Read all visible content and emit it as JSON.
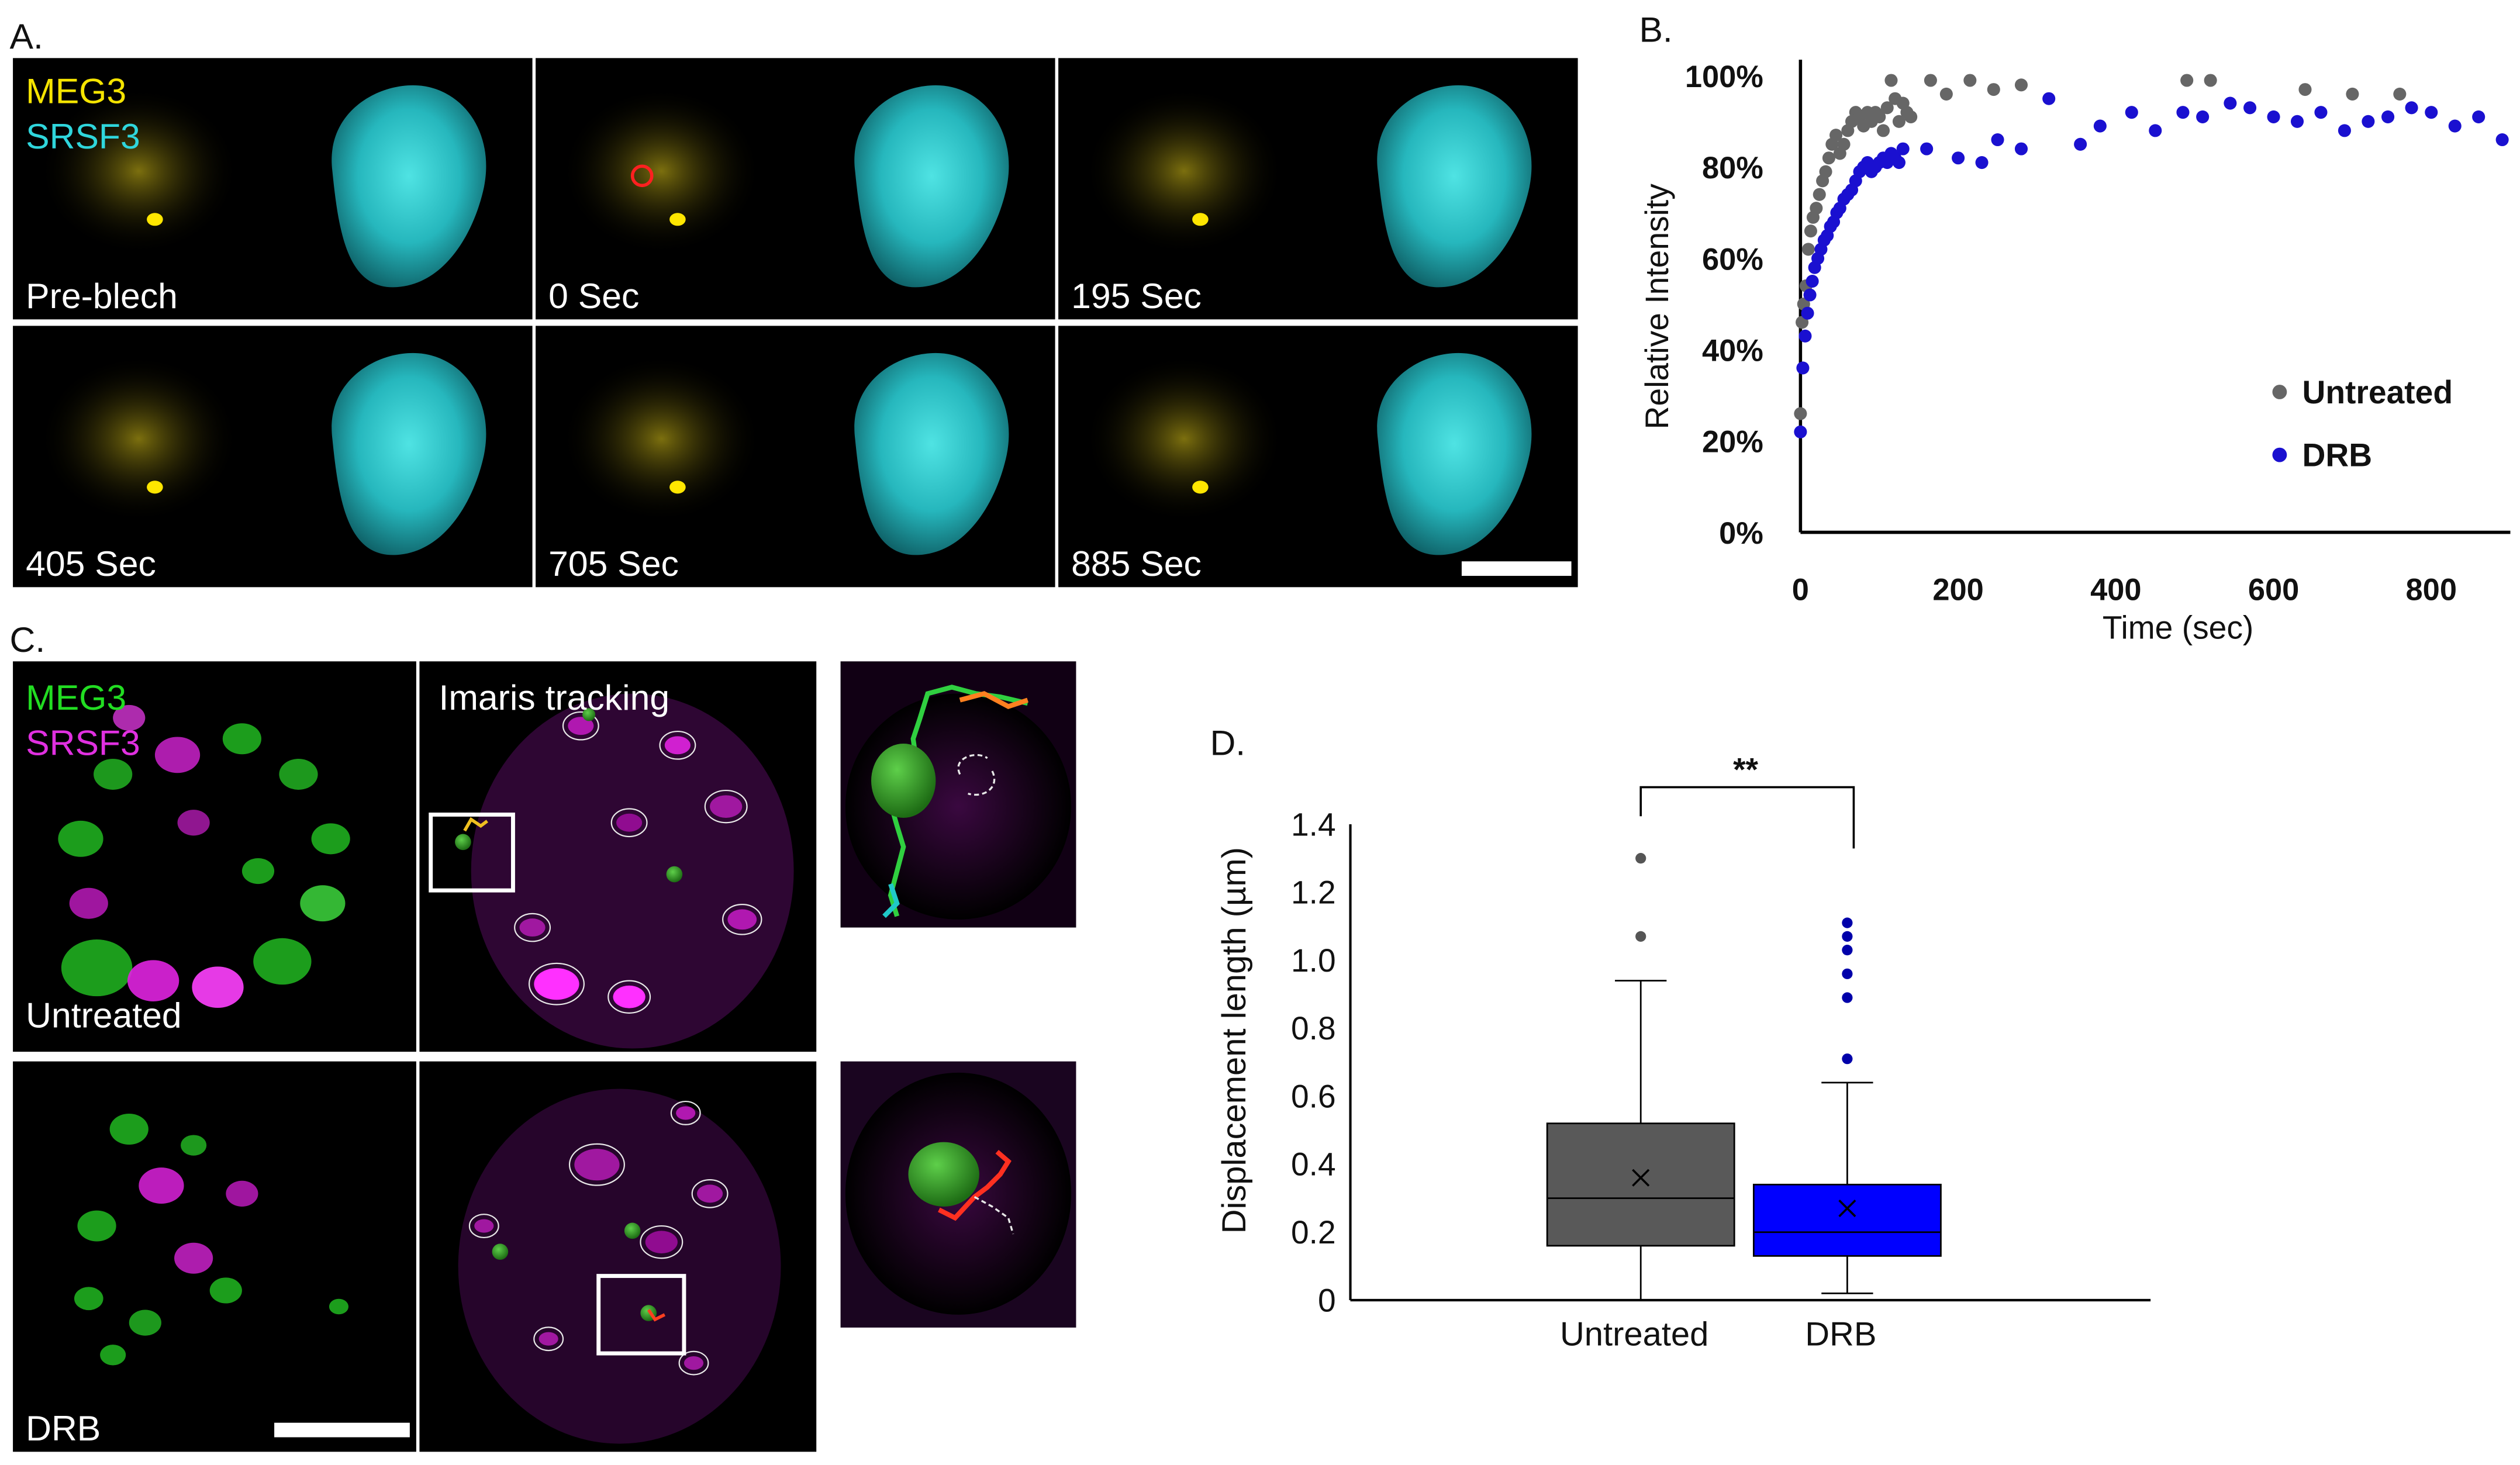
{
  "panel_a": {
    "label": "A.",
    "channels": [
      "MEG3",
      "SRSF3"
    ],
    "timepoints": [
      "Pre-blech",
      "0 Sec",
      "195 Sec",
      "405 Sec",
      "705 Sec",
      "885 Sec"
    ],
    "colors": {
      "meg3": "#f5e400",
      "srsf3": "#2fd6dc",
      "bleach_roi": "#ff2020"
    }
  },
  "panel_b": {
    "label": "B.",
    "colors": {
      "untreated": "#666666",
      "drb": "#1a10d0"
    }
  },
  "panel_c": {
    "label": "C.",
    "channels": [
      "MEG3",
      "SRSF3"
    ],
    "tracking_label": "Imaris tracking",
    "row_labels": [
      "Untreated",
      "DRB"
    ],
    "colors": {
      "meg3": "#22dd22",
      "srsf3": "#e030e0"
    }
  },
  "panel_d": {
    "label": "D.",
    "colors": {
      "untreated": "#595959",
      "drb": "#0000ff"
    }
  },
  "chart_data": [
    {
      "type": "scatter",
      "xlabel": "Time (sec)",
      "ylabel": "Relative Intensity",
      "xlim": [
        0,
        900
      ],
      "ylim": [
        0,
        100
      ],
      "x_ticks": [
        "0",
        "200",
        "400",
        "600",
        "800"
      ],
      "y_ticks": [
        "0%",
        "20%",
        "40%",
        "60%",
        "80%",
        "100%"
      ],
      "grid": false,
      "legend": "right",
      "series": [
        {
          "name": "Untreated",
          "points": [
            [
              0,
              26
            ],
            [
              2,
              46
            ],
            [
              4,
              50
            ],
            [
              7,
              54
            ],
            [
              10,
              62
            ],
            [
              13,
              66
            ],
            [
              16,
              69
            ],
            [
              20,
              71
            ],
            [
              24,
              74
            ],
            [
              28,
              77
            ],
            [
              32,
              79
            ],
            [
              36,
              82
            ],
            [
              40,
              85
            ],
            [
              45,
              87
            ],
            [
              50,
              83
            ],
            [
              55,
              85
            ],
            [
              60,
              88
            ],
            [
              65,
              90
            ],
            [
              70,
              92
            ],
            [
              75,
              91
            ],
            [
              80,
              89
            ],
            [
              85,
              92
            ],
            [
              90,
              90
            ],
            [
              95,
              92
            ],
            [
              100,
              91
            ],
            [
              105,
              88
            ],
            [
              110,
              93
            ],
            [
              115,
              99
            ],
            [
              120,
              95
            ],
            [
              125,
              90
            ],
            [
              130,
              94
            ],
            [
              135,
              92
            ],
            [
              140,
              91
            ],
            [
              165,
              99
            ],
            [
              185,
              96
            ],
            [
              215,
              99
            ],
            [
              245,
              97
            ],
            [
              280,
              98
            ],
            [
              490,
              99
            ],
            [
              520,
              99
            ],
            [
              640,
              97
            ],
            [
              700,
              96
            ],
            [
              760,
              96
            ]
          ]
        },
        {
          "name": "DRB",
          "points": [
            [
              0,
              22
            ],
            [
              3,
              36
            ],
            [
              6,
              43
            ],
            [
              9,
              48
            ],
            [
              12,
              52
            ],
            [
              15,
              55
            ],
            [
              18,
              58
            ],
            [
              22,
              60
            ],
            [
              26,
              62
            ],
            [
              30,
              64
            ],
            [
              34,
              65
            ],
            [
              38,
              67
            ],
            [
              42,
              68
            ],
            [
              46,
              70
            ],
            [
              50,
              71
            ],
            [
              55,
              73
            ],
            [
              60,
              74
            ],
            [
              65,
              75
            ],
            [
              70,
              77
            ],
            [
              75,
              79
            ],
            [
              80,
              80
            ],
            [
              85,
              81
            ],
            [
              90,
              79
            ],
            [
              95,
              80
            ],
            [
              100,
              81
            ],
            [
              105,
              82
            ],
            [
              110,
              81
            ],
            [
              115,
              83
            ],
            [
              120,
              82
            ],
            [
              125,
              81
            ],
            [
              130,
              84
            ],
            [
              160,
              84
            ],
            [
              200,
              82
            ],
            [
              230,
              81
            ],
            [
              250,
              86
            ],
            [
              280,
              84
            ],
            [
              315,
              95
            ],
            [
              355,
              85
            ],
            [
              380,
              89
            ],
            [
              420,
              92
            ],
            [
              450,
              88
            ],
            [
              485,
              92
            ],
            [
              510,
              91
            ],
            [
              545,
              94
            ],
            [
              570,
              93
            ],
            [
              600,
              91
            ],
            [
              630,
              90
            ],
            [
              660,
              92
            ],
            [
              690,
              88
            ],
            [
              720,
              90
            ],
            [
              745,
              91
            ],
            [
              775,
              93
            ],
            [
              800,
              92
            ],
            [
              830,
              89
            ],
            [
              860,
              91
            ],
            [
              890,
              86
            ]
          ]
        }
      ]
    },
    {
      "type": "box",
      "ylabel": "Displacement length (µm)",
      "ylim": [
        0,
        1.4
      ],
      "y_ticks": [
        "0",
        "0.2",
        "0.4",
        "0.6",
        "0.8",
        "1.0",
        "1.2",
        "1.4"
      ],
      "categories": [
        "Untreated",
        "DRB"
      ],
      "significance": "**",
      "grid": false,
      "series": [
        {
          "category": "Untreated",
          "min": 0.0,
          "q1": 0.16,
          "median": 0.3,
          "q3": 0.52,
          "max": 0.94,
          "mean": 0.36,
          "outliers": [
            1.07,
            1.3
          ]
        },
        {
          "category": "DRB",
          "min": 0.02,
          "q1": 0.13,
          "median": 0.2,
          "q3": 0.34,
          "max": 0.64,
          "mean": 0.27,
          "outliers": [
            0.71,
            0.89,
            0.96,
            1.03,
            1.07,
            1.11
          ]
        }
      ]
    }
  ]
}
